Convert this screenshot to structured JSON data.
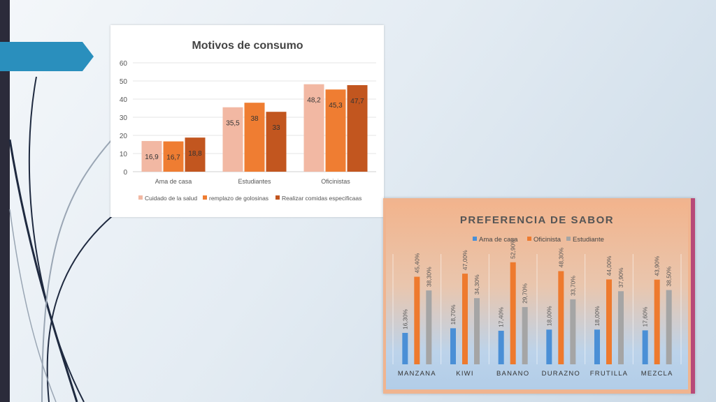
{
  "chart_data": [
    {
      "type": "bar",
      "title": "Motivos de consumo",
      "categories": [
        "Ama de casa",
        "Estudiantes",
        "Oficinistas"
      ],
      "series": [
        {
          "name": "Cuidado de la salud",
          "values": [
            16.9,
            35.5,
            48.2
          ],
          "labels": [
            "16,9",
            "35,5",
            "48,2"
          ],
          "color": "#f2b8a3"
        },
        {
          "name": "remplazo de golosinas",
          "values": [
            16.7,
            38,
            45.3
          ],
          "labels": [
            "16,7",
            "38",
            "45,3"
          ],
          "color": "#ef7d32"
        },
        {
          "name": "Realizar comidas especificaas",
          "values": [
            18.8,
            33,
            47.7
          ],
          "labels": [
            "18,8",
            "33",
            "47,7"
          ],
          "color": "#c2561f"
        }
      ],
      "yticks": [
        "0",
        "10",
        "20",
        "30",
        "40",
        "50",
        "60"
      ],
      "ylim": [
        0,
        60
      ],
      "grid": true,
      "legend": "bottom"
    },
    {
      "type": "bar",
      "title": "PREFERENCIA DE SABOR",
      "categories": [
        "MANZANA",
        "KIWI",
        "BANANO",
        "DURAZNO",
        "FRUTILLA",
        "MEZCLA"
      ],
      "series": [
        {
          "name": "Ama de casa",
          "values": [
            16.3,
            18.7,
            17.4,
            18.0,
            18.0,
            17.6
          ],
          "labels": [
            "16,30%",
            "18,70%",
            "17,40%",
            "18,00%",
            "18,00%",
            "17,60%"
          ],
          "color": "#4a8fd6"
        },
        {
          "name": "Oficinista",
          "values": [
            45.4,
            47.0,
            52.9,
            48.3,
            44.0,
            43.9
          ],
          "labels": [
            "45,40%",
            "47,00%",
            "52,90%",
            "48,30%",
            "44,00%",
            "43,90%"
          ],
          "color": "#ee7a2e"
        },
        {
          "name": "Estudiante",
          "values": [
            38.3,
            34.3,
            29.7,
            33.7,
            37.9,
            38.5
          ],
          "labels": [
            "38,30%",
            "34,30%",
            "29,70%",
            "33,70%",
            "37,90%",
            "38,50%"
          ],
          "color": "#a5a5a5"
        }
      ],
      "ylim": [
        0,
        55
      ],
      "grid": false,
      "legend": "top"
    }
  ]
}
